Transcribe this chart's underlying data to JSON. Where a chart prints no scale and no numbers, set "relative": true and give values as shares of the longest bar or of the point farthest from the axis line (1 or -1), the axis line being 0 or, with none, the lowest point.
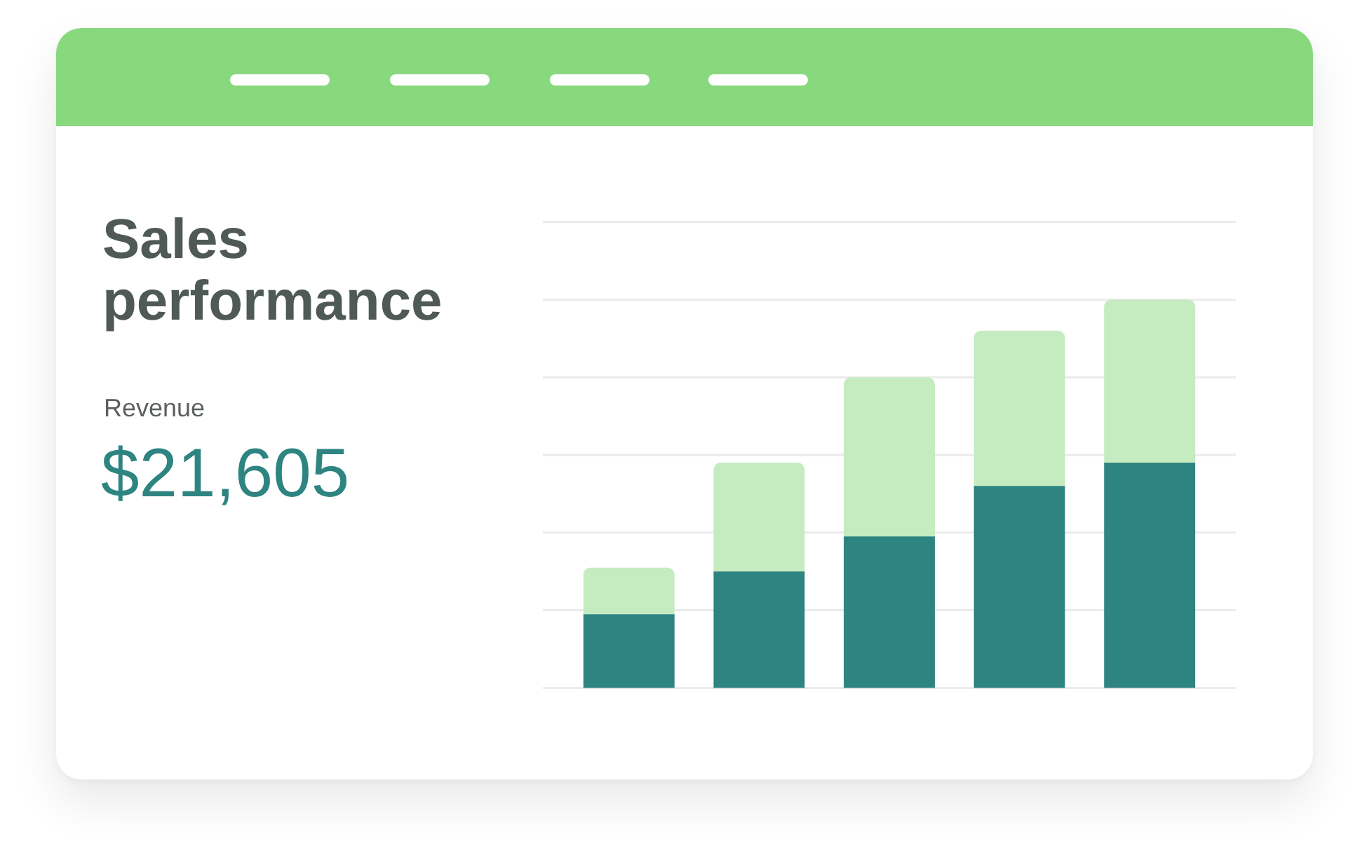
{
  "chart_data": {
    "type": "bar",
    "title": "Sales performance",
    "subtitle": "Revenue",
    "annotations": [
      "$21,605"
    ],
    "categories": [
      null,
      null,
      null,
      null,
      null
    ],
    "series": [
      {
        "color": "#2e8480",
        "values": [
          0.19,
          0.3,
          0.39,
          0.52,
          0.58
        ]
      },
      {
        "color": "#c5ebc0",
        "values": [
          0.12,
          0.28,
          0.41,
          0.4,
          0.42
        ]
      }
    ],
    "stacked": true,
    "relative": true,
    "grid": true,
    "legend": false,
    "tick_labels": false
  }
}
